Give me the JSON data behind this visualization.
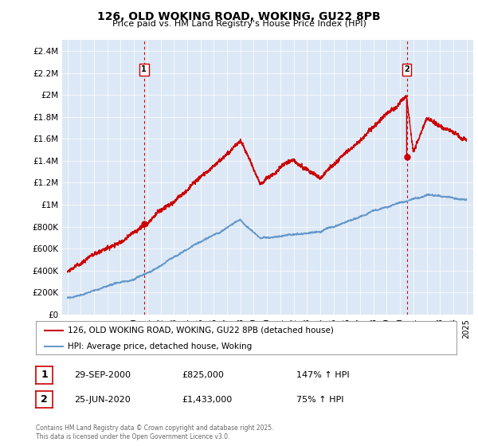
{
  "title": "126, OLD WOKING ROAD, WOKING, GU22 8PB",
  "subtitle": "Price paid vs. HM Land Registry's House Price Index (HPI)",
  "ylim": [
    0,
    2500000
  ],
  "yticks": [
    0,
    200000,
    400000,
    600000,
    800000,
    1000000,
    1200000,
    1400000,
    1600000,
    1800000,
    2000000,
    2200000,
    2400000
  ],
  "ytick_labels": [
    "£0",
    "£200K",
    "£400K",
    "£600K",
    "£800K",
    "£1M",
    "£1.2M",
    "£1.4M",
    "£1.6M",
    "£1.8M",
    "£2M",
    "£2.2M",
    "£2.4M"
  ],
  "hpi_color": "#6699cc",
  "price_color": "#cc0000",
  "vline_color": "#cc0000",
  "plot_bg_color": "#dce8f5",
  "background_color": "#ffffff",
  "grid_color": "#ffffff",
  "legend_label_price": "126, OLD WOKING ROAD, WOKING, GU22 8PB (detached house)",
  "legend_label_hpi": "HPI: Average price, detached house, Woking",
  "annotation1_date": "29-SEP-2000",
  "annotation1_price": "£825,000",
  "annotation1_hpi": "147% ↑ HPI",
  "annotation2_date": "25-JUN-2020",
  "annotation2_price": "£1,433,000",
  "annotation2_hpi": "75% ↑ HPI",
  "footnote": "Contains HM Land Registry data © Crown copyright and database right 2025.\nThis data is licensed under the Open Government Licence v3.0.",
  "sale1_year": 2000.75,
  "sale1_price": 825000,
  "sale2_year": 2020.5,
  "sale2_price": 1433000
}
